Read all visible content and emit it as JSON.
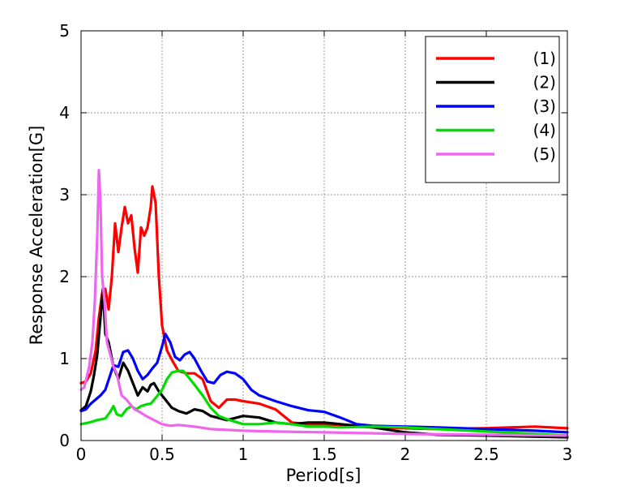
{
  "chart_data": {
    "type": "line",
    "title": "",
    "xlabel": "Period[s]",
    "ylabel": "Response Acceleration[G]",
    "xlim": [
      0,
      3
    ],
    "ylim": [
      0,
      5
    ],
    "x_ticks": [
      0,
      0.5,
      1,
      1.5,
      2,
      2.5,
      3
    ],
    "x_tick_labels": [
      "0",
      "0.5",
      "1",
      "1.5",
      "2",
      "2.5",
      "3"
    ],
    "y_ticks": [
      0,
      1,
      2,
      3,
      4,
      5
    ],
    "y_tick_labels": [
      "0",
      "1",
      "2",
      "3",
      "4",
      "5"
    ],
    "grid": true,
    "legend_position": "top-right",
    "series": [
      {
        "name": "(1)",
        "color": "#ff0000",
        "points": [
          [
            0,
            0.7
          ],
          [
            0.03,
            0.72
          ],
          [
            0.06,
            0.82
          ],
          [
            0.09,
            1.1
          ],
          [
            0.11,
            1.5
          ],
          [
            0.13,
            1.8
          ],
          [
            0.15,
            1.85
          ],
          [
            0.17,
            1.6
          ],
          [
            0.19,
            2.0
          ],
          [
            0.21,
            2.65
          ],
          [
            0.23,
            2.3
          ],
          [
            0.25,
            2.6
          ],
          [
            0.27,
            2.85
          ],
          [
            0.29,
            2.65
          ],
          [
            0.31,
            2.75
          ],
          [
            0.33,
            2.35
          ],
          [
            0.35,
            2.05
          ],
          [
            0.37,
            2.6
          ],
          [
            0.39,
            2.5
          ],
          [
            0.41,
            2.6
          ],
          [
            0.43,
            2.85
          ],
          [
            0.44,
            3.1
          ],
          [
            0.46,
            2.9
          ],
          [
            0.48,
            2.0
          ],
          [
            0.5,
            1.4
          ],
          [
            0.53,
            1.1
          ],
          [
            0.57,
            0.95
          ],
          [
            0.6,
            0.85
          ],
          [
            0.65,
            0.82
          ],
          [
            0.7,
            0.82
          ],
          [
            0.75,
            0.75
          ],
          [
            0.8,
            0.48
          ],
          [
            0.85,
            0.4
          ],
          [
            0.9,
            0.5
          ],
          [
            0.95,
            0.5
          ],
          [
            1.0,
            0.48
          ],
          [
            1.1,
            0.45
          ],
          [
            1.2,
            0.38
          ],
          [
            1.3,
            0.22
          ],
          [
            1.4,
            0.2
          ],
          [
            1.5,
            0.2
          ],
          [
            1.6,
            0.18
          ],
          [
            1.8,
            0.16
          ],
          [
            2.0,
            0.15
          ],
          [
            2.2,
            0.14
          ],
          [
            2.5,
            0.15
          ],
          [
            2.8,
            0.17
          ],
          [
            3.0,
            0.15
          ]
        ]
      },
      {
        "name": "(2)",
        "color": "#000000",
        "points": [
          [
            0,
            0.37
          ],
          [
            0.03,
            0.42
          ],
          [
            0.06,
            0.6
          ],
          [
            0.08,
            0.8
          ],
          [
            0.1,
            1.05
          ],
          [
            0.12,
            1.5
          ],
          [
            0.135,
            1.85
          ],
          [
            0.15,
            1.3
          ],
          [
            0.17,
            1.2
          ],
          [
            0.2,
            0.9
          ],
          [
            0.23,
            0.75
          ],
          [
            0.26,
            0.95
          ],
          [
            0.29,
            0.85
          ],
          [
            0.32,
            0.7
          ],
          [
            0.35,
            0.55
          ],
          [
            0.38,
            0.65
          ],
          [
            0.41,
            0.6
          ],
          [
            0.43,
            0.68
          ],
          [
            0.45,
            0.7
          ],
          [
            0.48,
            0.6
          ],
          [
            0.52,
            0.5
          ],
          [
            0.56,
            0.4
          ],
          [
            0.6,
            0.36
          ],
          [
            0.65,
            0.33
          ],
          [
            0.7,
            0.38
          ],
          [
            0.75,
            0.36
          ],
          [
            0.8,
            0.3
          ],
          [
            0.9,
            0.25
          ],
          [
            1.0,
            0.3
          ],
          [
            1.1,
            0.28
          ],
          [
            1.2,
            0.22
          ],
          [
            1.3,
            0.2
          ],
          [
            1.4,
            0.22
          ],
          [
            1.5,
            0.22
          ],
          [
            1.6,
            0.2
          ],
          [
            1.8,
            0.16
          ],
          [
            2.0,
            0.1
          ],
          [
            2.2,
            0.07
          ],
          [
            2.5,
            0.06
          ],
          [
            3.0,
            0.04
          ]
        ]
      },
      {
        "name": "(3)",
        "color": "#0000ff",
        "points": [
          [
            0,
            0.36
          ],
          [
            0.03,
            0.38
          ],
          [
            0.06,
            0.45
          ],
          [
            0.09,
            0.5
          ],
          [
            0.12,
            0.55
          ],
          [
            0.15,
            0.62
          ],
          [
            0.18,
            0.8
          ],
          [
            0.2,
            0.92
          ],
          [
            0.23,
            0.9
          ],
          [
            0.26,
            1.08
          ],
          [
            0.29,
            1.1
          ],
          [
            0.32,
            1.0
          ],
          [
            0.35,
            0.85
          ],
          [
            0.38,
            0.75
          ],
          [
            0.41,
            0.8
          ],
          [
            0.44,
            0.88
          ],
          [
            0.47,
            0.95
          ],
          [
            0.5,
            1.15
          ],
          [
            0.52,
            1.3
          ],
          [
            0.55,
            1.2
          ],
          [
            0.58,
            1.02
          ],
          [
            0.61,
            0.98
          ],
          [
            0.64,
            1.05
          ],
          [
            0.67,
            1.08
          ],
          [
            0.7,
            1.0
          ],
          [
            0.74,
            0.85
          ],
          [
            0.78,
            0.72
          ],
          [
            0.82,
            0.7
          ],
          [
            0.86,
            0.8
          ],
          [
            0.9,
            0.84
          ],
          [
            0.95,
            0.82
          ],
          [
            1.0,
            0.75
          ],
          [
            1.05,
            0.62
          ],
          [
            1.1,
            0.55
          ],
          [
            1.2,
            0.48
          ],
          [
            1.3,
            0.42
          ],
          [
            1.4,
            0.37
          ],
          [
            1.5,
            0.35
          ],
          [
            1.6,
            0.28
          ],
          [
            1.7,
            0.2
          ],
          [
            1.8,
            0.18
          ],
          [
            2.0,
            0.17
          ],
          [
            2.2,
            0.16
          ],
          [
            2.5,
            0.14
          ],
          [
            2.8,
            0.12
          ],
          [
            3.0,
            0.1
          ]
        ]
      },
      {
        "name": "(4)",
        "color": "#00dd00",
        "points": [
          [
            0,
            0.2
          ],
          [
            0.05,
            0.22
          ],
          [
            0.1,
            0.25
          ],
          [
            0.15,
            0.27
          ],
          [
            0.18,
            0.35
          ],
          [
            0.2,
            0.42
          ],
          [
            0.22,
            0.32
          ],
          [
            0.25,
            0.3
          ],
          [
            0.28,
            0.38
          ],
          [
            0.31,
            0.42
          ],
          [
            0.34,
            0.38
          ],
          [
            0.37,
            0.42
          ],
          [
            0.4,
            0.44
          ],
          [
            0.43,
            0.45
          ],
          [
            0.46,
            0.52
          ],
          [
            0.5,
            0.62
          ],
          [
            0.53,
            0.75
          ],
          [
            0.56,
            0.83
          ],
          [
            0.6,
            0.85
          ],
          [
            0.63,
            0.85
          ],
          [
            0.66,
            0.78
          ],
          [
            0.7,
            0.68
          ],
          [
            0.75,
            0.55
          ],
          [
            0.8,
            0.4
          ],
          [
            0.85,
            0.3
          ],
          [
            0.9,
            0.26
          ],
          [
            1.0,
            0.2
          ],
          [
            1.1,
            0.2
          ],
          [
            1.2,
            0.22
          ],
          [
            1.3,
            0.2
          ],
          [
            1.4,
            0.17
          ],
          [
            1.5,
            0.17
          ],
          [
            1.6,
            0.16
          ],
          [
            1.8,
            0.17
          ],
          [
            2.0,
            0.16
          ],
          [
            2.2,
            0.14
          ],
          [
            2.5,
            0.11
          ],
          [
            2.8,
            0.08
          ],
          [
            3.0,
            0.06
          ]
        ]
      },
      {
        "name": "(5)",
        "color": "#ee66ee",
        "points": [
          [
            0,
            0.62
          ],
          [
            0.02,
            0.65
          ],
          [
            0.05,
            0.9
          ],
          [
            0.07,
            1.2
          ],
          [
            0.085,
            1.7
          ],
          [
            0.1,
            2.5
          ],
          [
            0.11,
            3.3
          ],
          [
            0.12,
            2.9
          ],
          [
            0.13,
            2.0
          ],
          [
            0.145,
            1.7
          ],
          [
            0.16,
            1.2
          ],
          [
            0.18,
            1.05
          ],
          [
            0.2,
            0.9
          ],
          [
            0.22,
            0.82
          ],
          [
            0.25,
            0.55
          ],
          [
            0.28,
            0.5
          ],
          [
            0.3,
            0.45
          ],
          [
            0.33,
            0.38
          ],
          [
            0.36,
            0.35
          ],
          [
            0.4,
            0.3
          ],
          [
            0.45,
            0.25
          ],
          [
            0.5,
            0.2
          ],
          [
            0.55,
            0.18
          ],
          [
            0.6,
            0.19
          ],
          [
            0.65,
            0.18
          ],
          [
            0.7,
            0.17
          ],
          [
            0.8,
            0.14
          ],
          [
            1.0,
            0.12
          ],
          [
            1.2,
            0.11
          ],
          [
            1.5,
            0.1
          ],
          [
            2.0,
            0.08
          ],
          [
            2.5,
            0.07
          ],
          [
            3.0,
            0.06
          ]
        ]
      }
    ]
  }
}
